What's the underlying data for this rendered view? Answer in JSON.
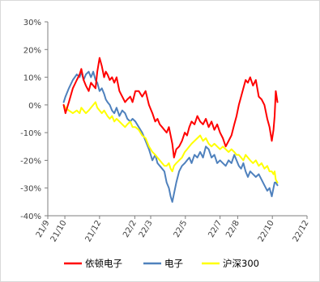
{
  "chart_data": {
    "type": "line",
    "title": "",
    "xlabel": "",
    "ylabel": "",
    "ylim": [
      -40,
      30
    ],
    "y_ticks": [
      "-40%",
      "-30%",
      "-20%",
      "-10%",
      "0%",
      "10%",
      "20%",
      "30%"
    ],
    "x_ticks": [
      "21/9",
      "21/10",
      "21/12",
      "22/2",
      "22/3",
      "22/5",
      "22/7",
      "22/8",
      "22/10",
      "22/12"
    ],
    "x_tick_days": [
      0,
      30,
      91,
      153,
      181,
      242,
      303,
      334,
      395,
      456
    ],
    "xlim_days": [
      0,
      456
    ],
    "legend_position": "bottom",
    "grid": false,
    "series": [
      {
        "name": "依顿电子",
        "color": "#ff0000",
        "x_days": [
          28,
          31,
          37,
          44,
          51,
          56,
          59,
          63,
          67,
          72,
          76,
          80,
          84,
          87,
          91,
          95,
          99,
          102,
          105,
          109,
          113,
          117,
          121,
          126,
          131,
          136,
          140,
          145,
          149,
          154,
          160,
          166,
          172,
          178,
          184,
          189,
          193,
          197,
          201,
          205,
          209,
          213,
          216,
          219,
          222,
          226,
          231,
          236,
          241,
          245,
          249,
          253,
          258,
          263,
          268,
          273,
          278,
          283,
          288,
          293,
          298,
          303,
          308,
          313,
          318,
          323,
          328,
          332,
          336,
          340,
          344,
          348,
          352,
          356,
          361,
          366,
          371,
          376,
          381,
          386,
          390,
          394,
          397,
          399,
          401,
          404
        ],
        "values": [
          0,
          -3,
          1,
          6,
          9,
          11,
          13,
          9,
          7,
          5,
          8,
          7,
          6,
          12,
          17,
          14,
          10,
          12,
          11,
          9,
          10,
          8,
          10,
          5,
          3,
          1,
          2,
          3,
          1,
          5,
          5,
          3,
          5,
          0,
          -3,
          -6,
          -5,
          -7,
          -8,
          -9,
          -10,
          -8,
          -11,
          -14,
          -19,
          -16,
          -15,
          -13,
          -10,
          -11,
          -8,
          -6,
          -7,
          -4,
          -6,
          -7,
          -5,
          -8,
          -6,
          -9,
          -7,
          -10,
          -12,
          -15,
          -13,
          -11,
          -7,
          -4,
          0,
          3,
          6,
          9,
          8,
          10,
          7,
          9,
          3,
          2,
          0,
          -5,
          -8,
          -13,
          -9,
          -4,
          5,
          1
        ]
      },
      {
        "name": "电子",
        "color": "#4f81bd",
        "x_days": [
          28,
          31,
          37,
          44,
          51,
          56,
          59,
          63,
          67,
          72,
          76,
          80,
          84,
          87,
          91,
          95,
          99,
          102,
          105,
          109,
          113,
          117,
          121,
          126,
          131,
          136,
          140,
          145,
          149,
          154,
          160,
          166,
          172,
          178,
          184,
          189,
          193,
          197,
          201,
          205,
          209,
          213,
          216,
          219,
          222,
          226,
          231,
          236,
          241,
          245,
          249,
          253,
          258,
          263,
          268,
          273,
          278,
          283,
          288,
          293,
          298,
          303,
          308,
          313,
          318,
          323,
          328,
          332,
          336,
          340,
          344,
          348,
          352,
          356,
          361,
          366,
          371,
          376,
          381,
          386,
          390,
          394,
          397,
          399,
          401,
          404
        ],
        "values": [
          1,
          3,
          6,
          9,
          11,
          10,
          12,
          9,
          11,
          12,
          10,
          12,
          9,
          8,
          5,
          6,
          4,
          2,
          1,
          0,
          -2,
          -3,
          -1,
          -4,
          -2,
          -3,
          -5,
          -6,
          -5,
          -6,
          -8,
          -10,
          -13,
          -16,
          -20,
          -18,
          -21,
          -22,
          -23,
          -24,
          -28,
          -30,
          -33,
          -35,
          -32,
          -28,
          -24,
          -22,
          -21,
          -20,
          -19,
          -21,
          -18,
          -19,
          -17,
          -19,
          -15,
          -16,
          -19,
          -18,
          -21,
          -20,
          -21,
          -22,
          -20,
          -21,
          -18,
          -20,
          -22,
          -23,
          -21,
          -24,
          -26,
          -24,
          -25,
          -26,
          -25,
          -27,
          -29,
          -31,
          -30,
          -33,
          -30,
          -28,
          -28,
          -29
        ]
      },
      {
        "name": "沪深300",
        "color": "#ffff00",
        "x_days": [
          28,
          31,
          37,
          44,
          51,
          56,
          59,
          63,
          67,
          72,
          76,
          80,
          84,
          87,
          91,
          95,
          99,
          102,
          105,
          109,
          113,
          117,
          121,
          126,
          131,
          136,
          140,
          145,
          149,
          154,
          160,
          166,
          172,
          178,
          184,
          189,
          193,
          197,
          201,
          205,
          209,
          213,
          216,
          219,
          222,
          226,
          231,
          236,
          241,
          245,
          249,
          253,
          258,
          263,
          268,
          273,
          278,
          283,
          288,
          293,
          298,
          303,
          308,
          313,
          318,
          323,
          328,
          332,
          336,
          340,
          344,
          348,
          352,
          356,
          361,
          366,
          371,
          376,
          381,
          386,
          390,
          394,
          397,
          399,
          401,
          404
        ],
        "values": [
          0,
          -1,
          -2,
          -3,
          -2,
          -3,
          -1,
          -2,
          -3,
          -2,
          -1,
          0,
          1,
          -1,
          -2,
          -3,
          -2,
          -3,
          -4,
          -5,
          -4,
          -6,
          -5,
          -6,
          -7,
          -8,
          -7,
          -6,
          -8,
          -8,
          -9,
          -11,
          -12,
          -15,
          -17,
          -18,
          -19,
          -20,
          -21,
          -22,
          -22,
          -21,
          -23,
          -24,
          -22,
          -21,
          -20,
          -19,
          -17,
          -16,
          -15,
          -14,
          -13,
          -12,
          -11,
          -13,
          -12,
          -14,
          -15,
          -14,
          -15,
          -16,
          -15,
          -16,
          -17,
          -16,
          -17,
          -18,
          -18,
          -19,
          -20,
          -18,
          -19,
          -20,
          -21,
          -20,
          -22,
          -21,
          -23,
          -22,
          -24,
          -24,
          -25,
          -24,
          -27,
          -28
        ]
      }
    ]
  }
}
